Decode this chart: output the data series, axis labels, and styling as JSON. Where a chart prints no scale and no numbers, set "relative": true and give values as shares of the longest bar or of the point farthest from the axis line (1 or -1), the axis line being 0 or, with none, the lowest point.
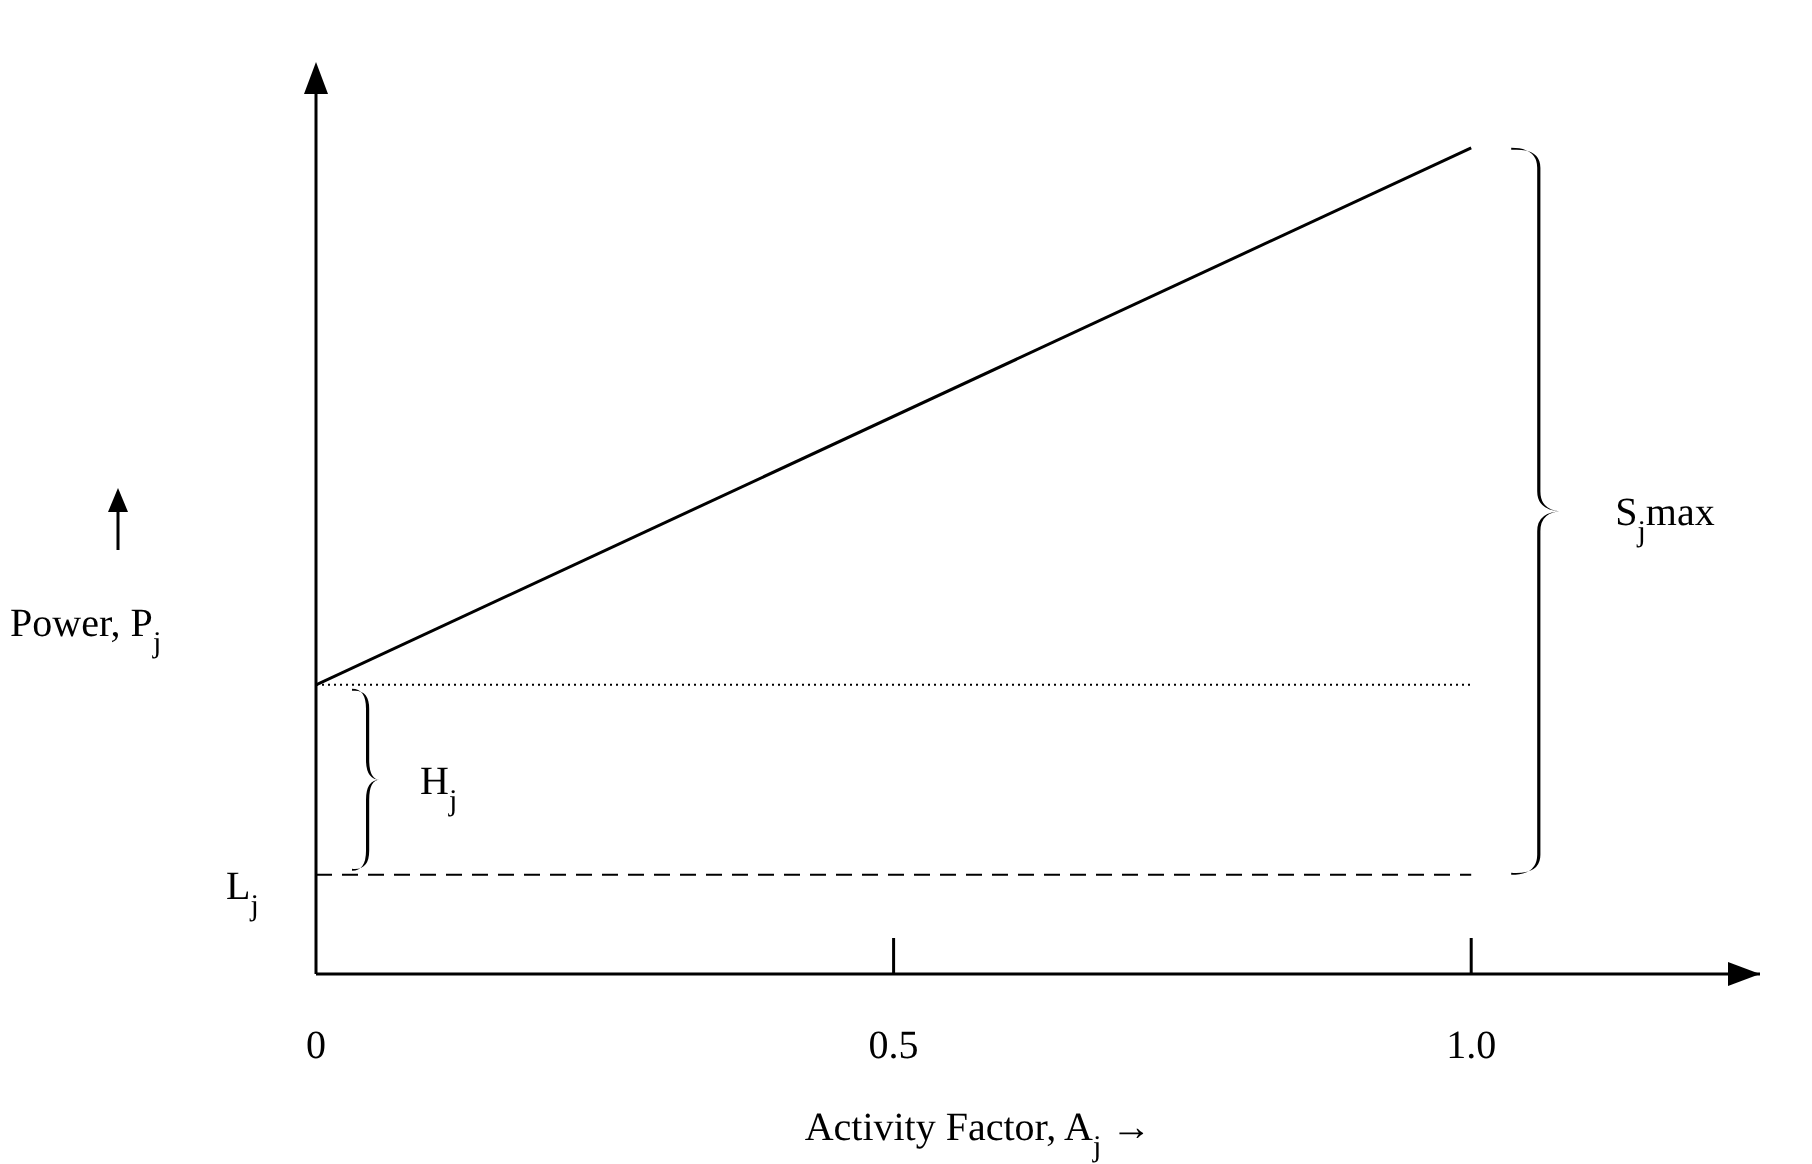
{
  "chart_data": {
    "type": "line",
    "relative": true,
    "xlabel": "Activity Factor, A$_{j}$ →",
    "ylabel": "Power, P$_{j}$",
    "annotations": [
      "H$_{j}$",
      "S$_{j}$max"
    ],
    "xlim": [
      0,
      1.25
    ],
    "xticks": [
      0,
      0.5,
      {
        "value": 1.0,
        "label": "1.0"
      }
    ],
    "series": [
      {
        "color": "#000000",
        "x": [
          0,
          1.0
        ],
        "values": [
          0.35,
          1
        ]
      }
    ],
    "ref_lines": [
      {
        "axis": "y",
        "value": 0.12,
        "label": "L$_{j}$",
        "line_style": "dashed",
        "color": "#000000"
      },
      {
        "axis": "y",
        "value": 0.35,
        "line_style": "dotted",
        "color": "#000000"
      }
    ],
    "marker": "none",
    "line_style": "solid"
  }
}
